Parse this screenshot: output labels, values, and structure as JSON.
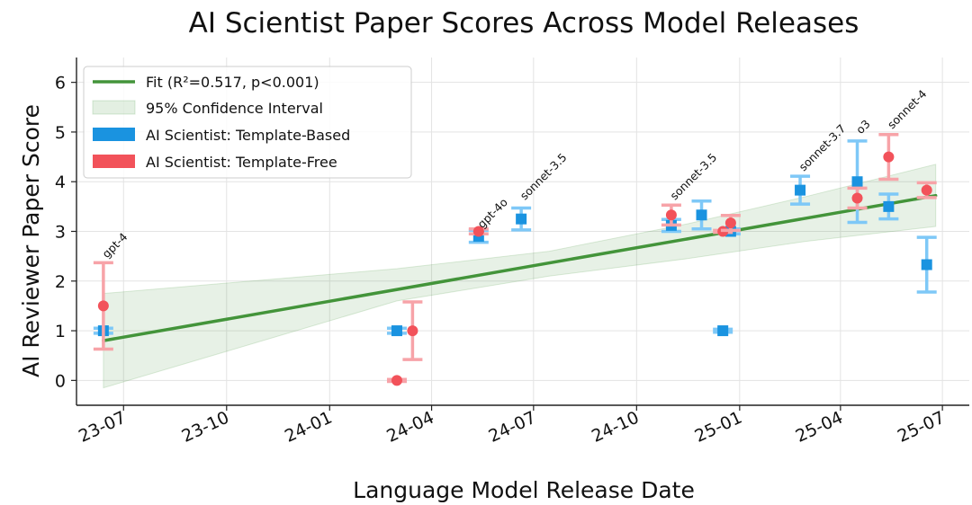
{
  "chart_data": {
    "type": "scatter",
    "title": "AI Scientist Paper Scores Across Model Releases",
    "xlabel": "Language Model Release Date",
    "ylabel": "AI Reviewer Paper Score",
    "x_type": "date",
    "xlim": [
      "2023-05-20",
      "2025-07-25"
    ],
    "ylim": [
      -0.5,
      6.5
    ],
    "x_ticks": [
      {
        "date": "2023-07-01",
        "label": "23-07"
      },
      {
        "date": "2023-10-01",
        "label": "23-10"
      },
      {
        "date": "2024-01-01",
        "label": "24-01"
      },
      {
        "date": "2024-04-01",
        "label": "24-04"
      },
      {
        "date": "2024-07-01",
        "label": "24-07"
      },
      {
        "date": "2024-10-01",
        "label": "24-10"
      },
      {
        "date": "2025-01-01",
        "label": "25-01"
      },
      {
        "date": "2025-04-01",
        "label": "25-04"
      },
      {
        "date": "2025-07-01",
        "label": "25-07"
      }
    ],
    "y_ticks": [
      0,
      1,
      2,
      3,
      4,
      5,
      6
    ],
    "grid": true,
    "legend_position": "upper-left",
    "fit": {
      "name": "Fit (R²=0.517, p<0.001)",
      "color": "#43943a",
      "points": [
        {
          "x": "2023-06-13",
          "y": 0.8
        },
        {
          "x": "2025-06-25",
          "y": 3.72
        }
      ]
    },
    "confidence_interval": {
      "name": "95% Confidence Interval",
      "color": "#43943a",
      "upper": [
        {
          "x": "2023-06-13",
          "y": 1.75
        },
        {
          "x": "2024-03-01",
          "y": 2.25
        },
        {
          "x": "2024-07-15",
          "y": 2.6
        },
        {
          "x": "2024-11-15",
          "y": 3.15
        },
        {
          "x": "2025-03-01",
          "y": 3.7
        },
        {
          "x": "2025-06-25",
          "y": 4.35
        }
      ],
      "lower": [
        {
          "x": "2023-06-13",
          "y": -0.15
        },
        {
          "x": "2024-03-01",
          "y": 1.6
        },
        {
          "x": "2024-07-15",
          "y": 2.1
        },
        {
          "x": "2024-11-15",
          "y": 2.45
        },
        {
          "x": "2025-03-01",
          "y": 2.8
        },
        {
          "x": "2025-06-25",
          "y": 3.1
        }
      ]
    },
    "series": [
      {
        "name": "AI Scientist: Template-Based",
        "color": "#1a93e0",
        "err_color": "#7ec8f7",
        "marker": "square",
        "points": [
          {
            "x": "2023-06-13",
            "y": 1.0,
            "err": 0.05
          },
          {
            "x": "2024-03-01",
            "y": 1.0,
            "err": 0.05
          },
          {
            "x": "2024-05-13",
            "y": 2.9,
            "err": 0.12
          },
          {
            "x": "2024-06-20",
            "y": 3.25,
            "err": 0.22
          },
          {
            "x": "2024-11-01",
            "y": 3.12,
            "err": 0.12
          },
          {
            "x": "2024-11-28",
            "y": 3.33,
            "err": 0.28
          },
          {
            "x": "2024-12-17",
            "y": 1.0,
            "err": 0.03
          },
          {
            "x": "2024-12-24",
            "y": 3.0,
            "err": 0.05
          },
          {
            "x": "2025-02-24",
            "y": 3.83,
            "err": 0.28
          },
          {
            "x": "2025-04-16",
            "y": 4.0,
            "err": 0.82
          },
          {
            "x": "2025-05-14",
            "y": 3.5,
            "err": 0.25
          },
          {
            "x": "2025-06-17",
            "y": 2.33,
            "err": 0.55
          }
        ]
      },
      {
        "name": "AI Scientist: Template-Free",
        "color": "#f2525a",
        "err_color": "#f7a3a8",
        "marker": "circle",
        "points": [
          {
            "x": "2023-06-13",
            "y": 1.5,
            "err": 0.87
          },
          {
            "x": "2024-03-01",
            "y": 0.0,
            "err": 0.02
          },
          {
            "x": "2024-03-15",
            "y": 1.0,
            "err": 0.58
          },
          {
            "x": "2024-05-13",
            "y": 3.0,
            "err": 0.05
          },
          {
            "x": "2024-11-01",
            "y": 3.33,
            "err": 0.2
          },
          {
            "x": "2024-12-17",
            "y": 3.0,
            "err": 0.02
          },
          {
            "x": "2024-12-24",
            "y": 3.17,
            "err": 0.15
          },
          {
            "x": "2025-04-16",
            "y": 3.67,
            "err": 0.2
          },
          {
            "x": "2025-05-14",
            "y": 4.5,
            "err": 0.45
          },
          {
            "x": "2025-06-17",
            "y": 3.83,
            "err": 0.15
          }
        ]
      }
    ],
    "annotations": [
      {
        "text": "gpt-4",
        "x": "2023-06-13",
        "y": 2.45
      },
      {
        "text": "gpt-4o",
        "x": "2024-05-13",
        "y": 3.05
      },
      {
        "text": "sonnet-3.5",
        "x": "2024-06-20",
        "y": 3.62
      },
      {
        "text": "sonnet-3.5",
        "x": "2024-11-01",
        "y": 3.62
      },
      {
        "text": "sonnet-3.7",
        "x": "2025-02-24",
        "y": 4.2
      },
      {
        "text": "o3",
        "x": "2025-04-16",
        "y": 4.95
      },
      {
        "text": "sonnet-4",
        "x": "2025-05-14",
        "y": 5.05
      }
    ]
  }
}
